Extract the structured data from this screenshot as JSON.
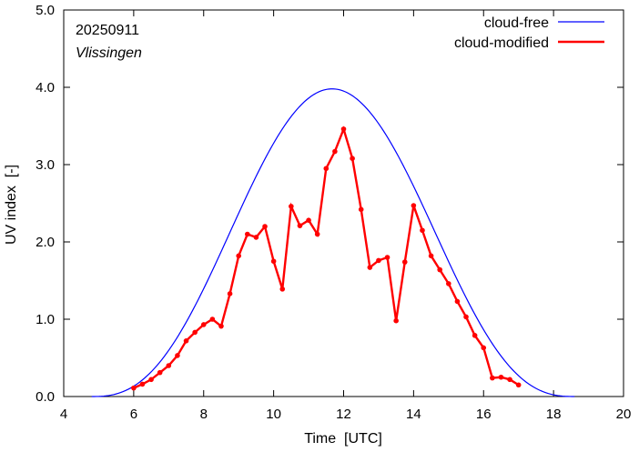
{
  "chart_data": {
    "type": "line",
    "date_label": "20250911",
    "station": "Vlissingen",
    "xlabel": "Time  [UTC]",
    "ylabel": "UV index  [-]",
    "xlim": [
      4,
      20
    ],
    "ylim": [
      0,
      5
    ],
    "xticks": [
      4,
      6,
      8,
      10,
      12,
      14,
      16,
      18,
      20
    ],
    "yticks": [
      0,
      1,
      2,
      3,
      4,
      5
    ],
    "ytick_labels": [
      "0.0",
      "1.0",
      "2.0",
      "3.0",
      "4.0",
      "5.0"
    ],
    "legend_placement": "top-right",
    "grid": false,
    "series": [
      {
        "name": "cloud-free",
        "color": "#0000ff",
        "peak_time": 11.67,
        "peak_value": 3.98,
        "start_time": 4.8,
        "end_time": 18.6
      },
      {
        "name": "cloud-modified",
        "color": "#ff0000",
        "x": [
          6.0,
          6.25,
          6.5,
          6.75,
          7.0,
          7.25,
          7.5,
          7.75,
          8.0,
          8.25,
          8.5,
          8.75,
          9.0,
          9.25,
          9.5,
          9.75,
          10.0,
          10.25,
          10.5,
          10.75,
          11.0,
          11.25,
          11.5,
          11.75,
          12.0,
          12.25,
          12.5,
          12.75,
          13.0,
          13.25,
          13.5,
          13.75,
          14.0,
          14.25,
          14.5,
          14.75,
          15.0,
          15.25,
          15.5,
          15.75,
          16.0,
          16.25,
          16.5,
          16.75,
          17.0
        ],
        "values": [
          0.11,
          0.16,
          0.22,
          0.31,
          0.4,
          0.53,
          0.72,
          0.83,
          0.93,
          1.0,
          0.91,
          1.33,
          1.82,
          2.1,
          2.06,
          2.2,
          1.75,
          1.39,
          2.46,
          2.21,
          2.28,
          2.1,
          2.95,
          3.17,
          3.46,
          3.08,
          2.42,
          1.67,
          1.76,
          1.8,
          0.98,
          1.74,
          2.47,
          2.15,
          1.82,
          1.64,
          1.46,
          1.23,
          1.03,
          0.79,
          0.63,
          0.24,
          0.25,
          0.22,
          0.15
        ]
      }
    ]
  }
}
